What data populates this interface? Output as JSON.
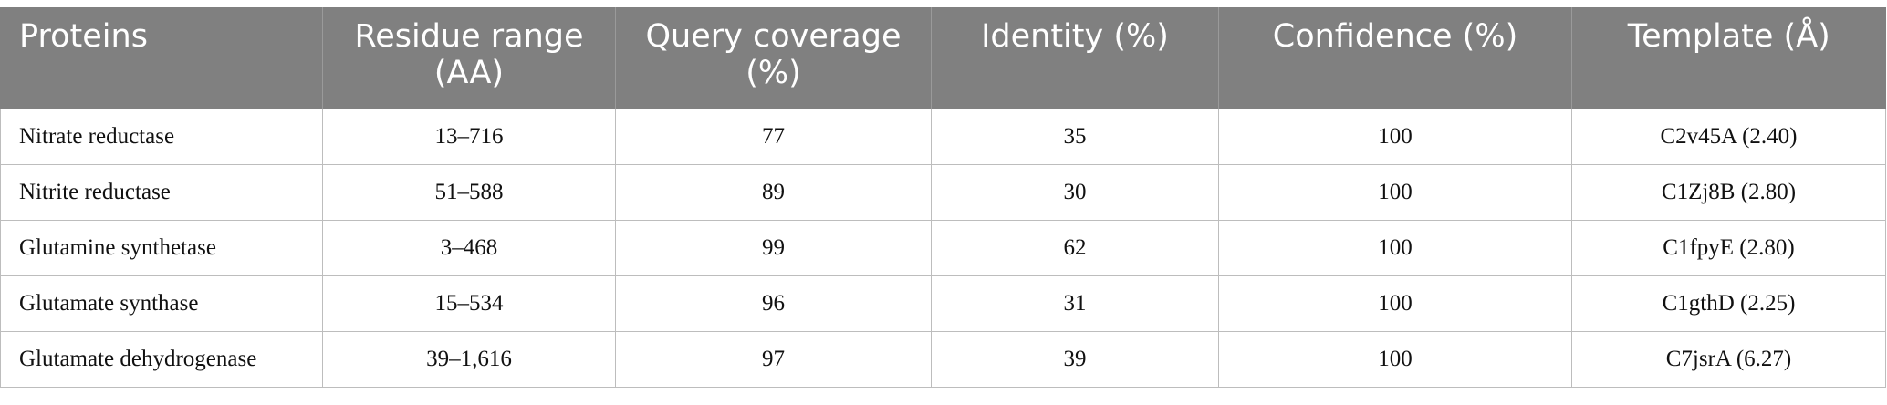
{
  "table": {
    "header": [
      "Proteins",
      "Residue range (AA)",
      "Query coverage (%)",
      "Identity (%)",
      "Confidence (%)",
      "Template (Å)"
    ],
    "rows": [
      [
        "Nitrate reductase",
        "13–716",
        "77",
        "35",
        "100",
        "C2v45A (2.40)"
      ],
      [
        "Nitrite reductase",
        "51–588",
        "89",
        "30",
        "100",
        "C1Zj8B (2.80)"
      ],
      [
        "Glutamine synthetase",
        "3–468",
        "99",
        "62",
        "100",
        "C1fpyE (2.80)"
      ],
      [
        "Glutamate synthase",
        "15–534",
        "96",
        "31",
        "100",
        "C1gthD (2.25)"
      ],
      [
        "Glutamate dehydrogenase",
        "39–1,616",
        "97",
        "39",
        "100",
        "C7jsrA (6.27)"
      ]
    ]
  }
}
